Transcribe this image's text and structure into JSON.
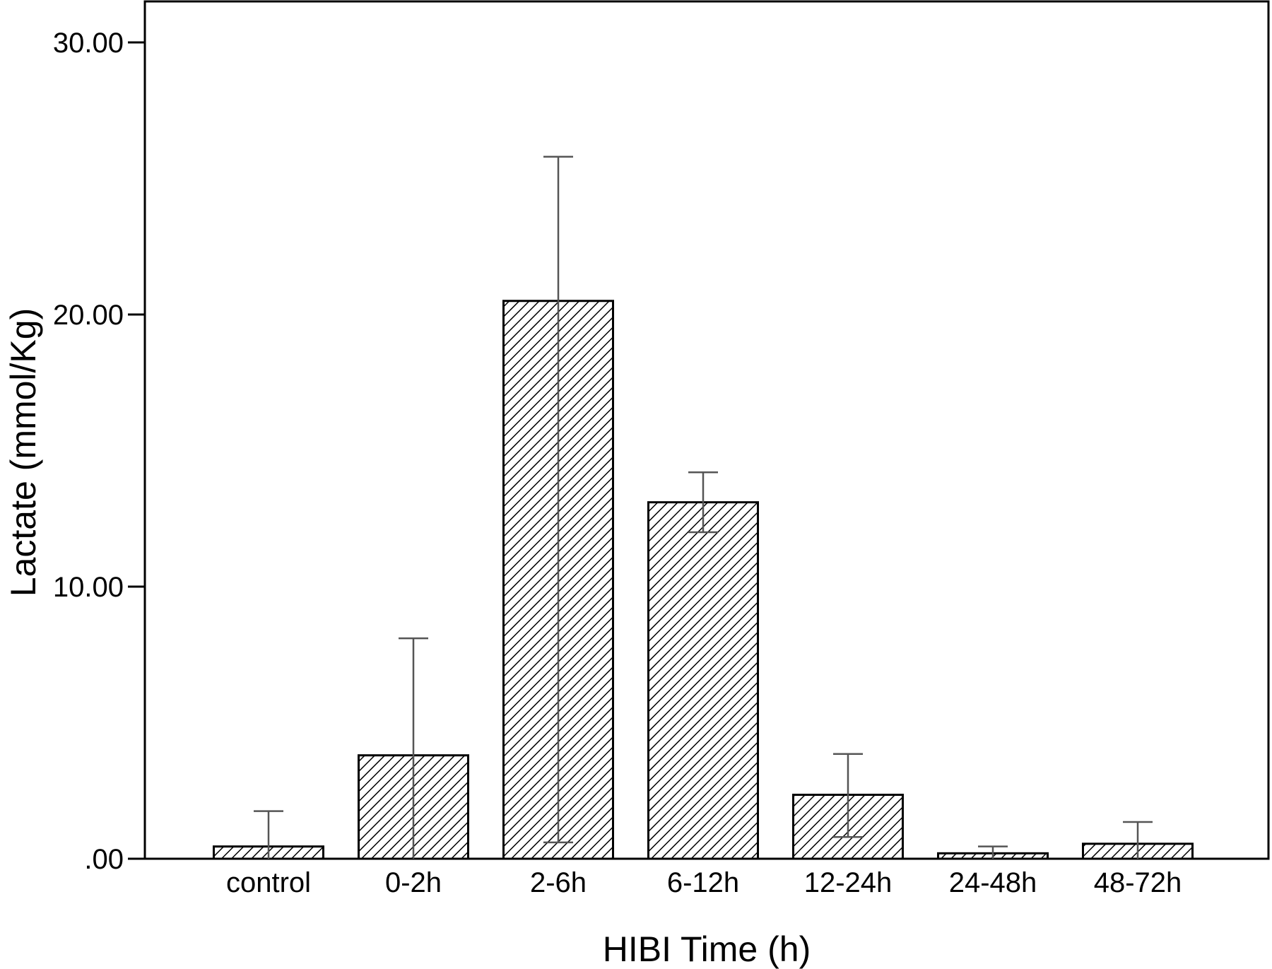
{
  "chart_data": {
    "type": "bar",
    "xlabel": "HIBI Time (h)",
    "ylabel": "Lactate (mmol/Kg)",
    "ylim": [
      0,
      31
    ],
    "yticks": [
      {
        "value": 0,
        "label": ".00"
      },
      {
        "value": 10,
        "label": "10.00"
      },
      {
        "value": 20,
        "label": "20.00"
      },
      {
        "value": 30,
        "label": "30.00"
      }
    ],
    "grid": false,
    "legend": "none",
    "categories": [
      "control",
      "0-2h",
      "2-6h",
      "6-12h",
      "12-24h",
      "24-48h",
      "48-72h"
    ],
    "values": [
      0.45,
      3.8,
      20.5,
      13.1,
      2.35,
      0.2,
      0.55
    ],
    "error_upper": [
      1.75,
      8.1,
      25.8,
      14.2,
      3.85,
      0.45,
      1.35
    ],
    "error_lower": [
      0.0,
      0.0,
      0.6,
      12.0,
      0.8,
      0.0,
      0.0
    ],
    "colors": {
      "bar_fill_pattern": "#000000",
      "bar_outline": "#000000",
      "error_bar": "#555555"
    }
  }
}
